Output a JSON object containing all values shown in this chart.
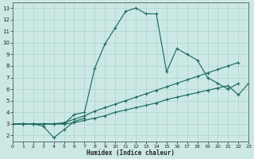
{
  "xlabel": "Humidex (Indice chaleur)",
  "bg_color": "#cce8e5",
  "line_color": "#1e6b62",
  "grid_color": "#aad4cf",
  "xlim": [
    0,
    23
  ],
  "ylim": [
    1.5,
    13.5
  ],
  "xticks": [
    0,
    1,
    2,
    3,
    4,
    5,
    6,
    7,
    8,
    9,
    10,
    11,
    12,
    13,
    14,
    15,
    16,
    17,
    18,
    19,
    20,
    21,
    22,
    23
  ],
  "yticks": [
    2,
    3,
    4,
    5,
    6,
    7,
    8,
    9,
    10,
    11,
    12,
    13
  ],
  "lines": [
    {
      "x": [
        0,
        1,
        2,
        3,
        4,
        5,
        6,
        7,
        8,
        9,
        10,
        11,
        12,
        13,
        14,
        15,
        16,
        17,
        18,
        19,
        20,
        21,
        22
      ],
      "y": [
        3,
        3,
        3,
        3,
        3,
        3,
        3.8,
        4,
        7.8,
        9.9,
        11.3,
        12.7,
        13.0,
        12.5,
        12.5,
        7.5,
        9.5,
        9.0,
        8.5,
        7.0,
        6.5,
        6.0,
        6.5
      ]
    },
    {
      "x": [
        0,
        1,
        2,
        3,
        4,
        5,
        6,
        7
      ],
      "y": [
        3,
        3,
        3,
        2.8,
        1.8,
        2.5,
        3.2,
        3.5
      ]
    },
    {
      "x": [
        0,
        1,
        2,
        3,
        4,
        5,
        6,
        7,
        8,
        9,
        10,
        11,
        12,
        13,
        14,
        15,
        16,
        17,
        18,
        19,
        20,
        21,
        22
      ],
      "y": [
        3,
        3,
        3,
        3,
        3,
        3.1,
        3.4,
        3.7,
        4.1,
        4.4,
        4.7,
        5.0,
        5.3,
        5.6,
        5.9,
        6.2,
        6.5,
        6.8,
        7.1,
        7.4,
        7.7,
        8.0,
        8.3
      ]
    },
    {
      "x": [
        0,
        1,
        2,
        3,
        4,
        5,
        6,
        7,
        8,
        9,
        10,
        11,
        12,
        13,
        14,
        15,
        16,
        17,
        18,
        19,
        20,
        21,
        22,
        23
      ],
      "y": [
        3,
        3,
        3,
        3,
        3,
        3,
        3.1,
        3.3,
        3.5,
        3.7,
        4.0,
        4.2,
        4.4,
        4.6,
        4.8,
        5.1,
        5.3,
        5.5,
        5.7,
        5.9,
        6.1,
        6.3,
        5.5,
        6.5
      ]
    }
  ]
}
